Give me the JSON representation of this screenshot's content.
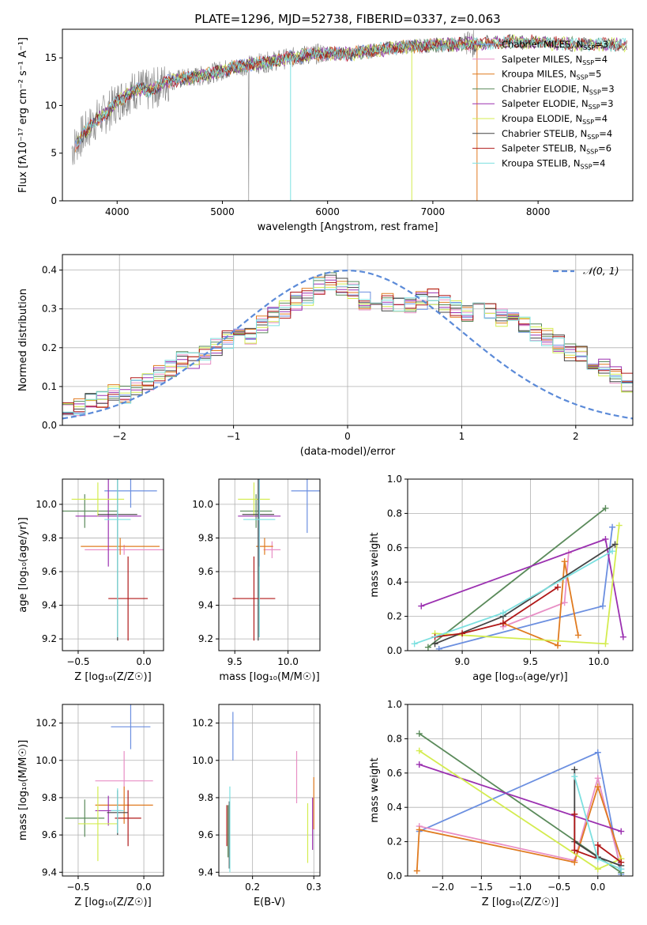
{
  "figure": {
    "title": "PLATE=1296, MJD=52738, FIBERID=0337, z=0.063"
  },
  "colors": {
    "Chabrier MILES": "#6b8fe0",
    "Salpeter MILES": "#e88fc5",
    "Kroupa MILES": "#e07b20",
    "Chabrier ELODIE": "#5a8a5a",
    "Salpeter ELODIE": "#9b30b0",
    "Kroupa ELODIE": "#d4ec50",
    "Chabrier STELIB": "#444444",
    "Salpeter STELIB": "#b01818",
    "Kroupa STELIB": "#7de0e0",
    "gaussian": "#5b8ad8",
    "data": "#7f7f7f"
  },
  "chart_data": [
    {
      "id": "spectrum",
      "type": "line",
      "xlabel": "wavelength [Angstrom, rest frame]",
      "ylabel": "Flux [fλ10⁻¹⁷ erg cm⁻² s⁻¹ A⁻¹]",
      "xlim": [
        3480,
        8900
      ],
      "ylim": [
        0,
        18
      ],
      "xticks": [
        4000,
        5000,
        6000,
        7000,
        8000
      ],
      "yticks": [
        0,
        5,
        10,
        15
      ],
      "grid": false,
      "legend_position": "right",
      "continuum_x": [
        3580,
        3640,
        3700,
        3800,
        3900,
        4000,
        4100,
        4200,
        4300,
        4500,
        4800,
        5000,
        5200,
        5400,
        5600,
        5800,
        6000,
        6200,
        6400,
        6600,
        6800,
        7000,
        7200,
        7400,
        7600,
        7800,
        8000,
        8200,
        8400
      ],
      "continuum_y": [
        5.5,
        6.5,
        7.2,
        8.5,
        9.2,
        10.4,
        11.2,
        11.8,
        11.5,
        12.6,
        13.1,
        13.7,
        14.2,
        14.5,
        14.9,
        15.3,
        15.5,
        15.4,
        15.7,
        16.0,
        16.2,
        16.3,
        16.4,
        16.5,
        16.6,
        16.7,
        16.6,
        16.5,
        16.4
      ],
      "series": [
        {
          "name": "Chabrier MILES, N_SSP=3",
          "name_main": "Chabrier MILES, N",
          "name_sub": "SSP",
          "name_tail": "=3"
        },
        {
          "name": "Salpeter MILES, N_SSP=4",
          "name_main": "Salpeter MILES, N",
          "name_sub": "SSP",
          "name_tail": "=4"
        },
        {
          "name": "Kroupa MILES, N_SSP=5",
          "name_main": "Kroupa MILES, N",
          "name_sub": "SSP",
          "name_tail": "=5"
        },
        {
          "name": "Chabrier ELODIE, N_SSP=3",
          "name_main": "Chabrier ELODIE, N",
          "name_sub": "SSP",
          "name_tail": "=3"
        },
        {
          "name": "Salpeter ELODIE, N_SSP=3",
          "name_main": "Salpeter ELODIE, N",
          "name_sub": "SSP",
          "name_tail": "=3"
        },
        {
          "name": "Kroupa ELODIE, N_SSP=4",
          "name_main": "Kroupa ELODIE, N",
          "name_sub": "SSP",
          "name_tail": "=4"
        },
        {
          "name": "Chabrier STELIB, N_SSP=4",
          "name_main": "Chabrier STELIB, N",
          "name_sub": "SSP",
          "name_tail": "=4"
        },
        {
          "name": "Salpeter STELIB, N_SSP=6",
          "name_main": "Salpeter STELIB, N",
          "name_sub": "SSP",
          "name_tail": "=6"
        },
        {
          "name": "Kroupa STELIB, N_SSP=4",
          "name_main": "Kroupa STELIB, N",
          "name_sub": "SSP",
          "name_tail": "=4"
        }
      ]
    },
    {
      "id": "residuals",
      "type": "histogram",
      "xlabel": "(data-model)/error",
      "ylabel": "Normed distribution",
      "xlim": [
        -2.5,
        2.5
      ],
      "ylim": [
        0,
        0.44
      ],
      "xticks": [
        -2,
        -1,
        0,
        1,
        2
      ],
      "xticklabels": [
        "−2",
        "−1",
        "0",
        "1",
        "2"
      ],
      "yticks": [
        0.0,
        0.1,
        0.2,
        0.3,
        0.4
      ],
      "yticklabels": [
        "0.0",
        "0.1",
        "0.2",
        "0.3",
        "0.4"
      ],
      "grid": true,
      "legend": "𝒩(0, 1)",
      "legend_position": "top-right",
      "bin_width": 0.1,
      "series_names": [
        "Chabrier MILES",
        "Salpeter MILES",
        "Kroupa MILES",
        "Chabrier ELODIE",
        "Salpeter ELODIE",
        "Kroupa ELODIE",
        "Chabrier STELIB",
        "Salpeter STELIB",
        "Kroupa STELIB"
      ],
      "base": [
        0.04,
        0.05,
        0.06,
        0.07,
        0.08,
        0.08,
        0.1,
        0.11,
        0.13,
        0.15,
        0.17,
        0.17,
        0.18,
        0.2,
        0.22,
        0.23,
        0.23,
        0.26,
        0.28,
        0.3,
        0.32,
        0.33,
        0.36,
        0.37,
        0.36,
        0.35,
        0.32,
        0.33,
        0.32,
        0.31,
        0.31,
        0.32,
        0.33,
        0.31,
        0.3,
        0.29,
        0.31,
        0.3,
        0.28,
        0.27,
        0.26,
        0.24,
        0.23,
        0.21,
        0.19,
        0.18,
        0.16,
        0.15,
        0.13,
        0.11,
        0.1,
        0.1,
        0.09,
        0.08,
        0.07,
        0.07,
        0.06,
        0.05,
        0.05,
        0.04
      ]
    },
    {
      "id": "age_vs_Z",
      "type": "errorbar",
      "xlabel": "Z [log₁₀(Z/Z☉)]",
      "ylabel": "age  [log₁₀(age/yr)]",
      "xlim": [
        -0.62,
        0.15
      ],
      "ylim": [
        9.13,
        10.15
      ],
      "xticks": [
        -0.5,
        0.0
      ],
      "xticklabels": [
        "−0.5",
        "0.0"
      ],
      "yticks": [
        9.2,
        9.4,
        9.6,
        9.8,
        10.0
      ],
      "yticklabels": [
        "9.2",
        "9.4",
        "9.6",
        "9.8",
        "10.0"
      ],
      "grid": true,
      "points": [
        {
          "series": "Chabrier MILES",
          "x": -0.1,
          "xerr": 0.2,
          "y": 10.08,
          "yerr": 0.1
        },
        {
          "series": "Salpeter MILES",
          "x": -0.15,
          "xerr": 0.3,
          "y": 9.73,
          "yerr": 0.03
        },
        {
          "series": "Kroupa MILES",
          "x": -0.18,
          "xerr": 0.3,
          "y": 9.75,
          "yerr": 0.05
        },
        {
          "series": "Chabrier ELODIE",
          "x": -0.45,
          "xerr": 0.25,
          "y": 9.96,
          "yerr": 0.1
        },
        {
          "series": "Salpeter ELODIE",
          "x": -0.27,
          "xerr": 0.25,
          "y": 9.93,
          "yerr": 0.3
        },
        {
          "series": "Kroupa ELODIE",
          "x": -0.35,
          "xerr": 0.2,
          "y": 10.03,
          "yerr": 0.1
        },
        {
          "series": "Chabrier STELIB",
          "x": -0.2,
          "xerr": 0.15,
          "y": 9.94,
          "yerr": 0.75
        },
        {
          "series": "Salpeter STELIB",
          "x": -0.12,
          "xerr": 0.15,
          "y": 9.44,
          "yerr": 0.25
        },
        {
          "series": "Kroupa STELIB",
          "x": -0.2,
          "xerr": 0.1,
          "y": 9.91,
          "yerr": 0.7
        }
      ]
    },
    {
      "id": "age_vs_mass",
      "type": "errorbar",
      "xlabel": "mass [log₁₀(M/M☉)]",
      "ylabel": "",
      "xlim": [
        9.35,
        10.3
      ],
      "ylim": [
        9.13,
        10.15
      ],
      "xticks": [
        9.5,
        10.0
      ],
      "xticklabels": [
        "9.5",
        "10.0"
      ],
      "yticks": [
        9.2,
        9.4,
        9.6,
        9.8,
        10.0
      ],
      "yticklabels": [
        "9.2",
        "9.4",
        "9.6",
        "9.8",
        "10.0"
      ],
      "grid": true,
      "points": [
        {
          "series": "Chabrier MILES",
          "x": 10.18,
          "xerr": 0.15,
          "y": 10.08,
          "yerr": 0.25
        },
        {
          "series": "Salpeter MILES",
          "x": 9.85,
          "xerr": 0.08,
          "y": 9.73,
          "yerr": 0.05
        },
        {
          "series": "Kroupa MILES",
          "x": 9.78,
          "xerr": 0.08,
          "y": 9.75,
          "yerr": 0.05
        },
        {
          "series": "Chabrier ELODIE",
          "x": 9.7,
          "xerr": 0.15,
          "y": 9.96,
          "yerr": 0.1
        },
        {
          "series": "Salpeter ELODIE",
          "x": 9.73,
          "xerr": 0.2,
          "y": 9.93,
          "yerr": 0.3
        },
        {
          "series": "Kroupa ELODIE",
          "x": 9.68,
          "xerr": 0.15,
          "y": 10.03,
          "yerr": 0.1
        },
        {
          "series": "Chabrier STELIB",
          "x": 9.72,
          "xerr": 0.15,
          "y": 9.94,
          "yerr": 0.75
        },
        {
          "series": "Salpeter STELIB",
          "x": 9.68,
          "xerr": 0.2,
          "y": 9.44,
          "yerr": 0.25
        },
        {
          "series": "Kroupa STELIB",
          "x": 9.73,
          "xerr": 0.15,
          "y": 9.91,
          "yerr": 0.7
        }
      ]
    },
    {
      "id": "mass_vs_Z",
      "type": "errorbar",
      "xlabel": "Z [log₁₀(Z/Z☉)]",
      "ylabel": "mass [log₁₀(M/M☉)]",
      "xlim": [
        -0.62,
        0.15
      ],
      "ylim": [
        9.38,
        10.3
      ],
      "xticks": [
        -0.5,
        0.0
      ],
      "xticklabels": [
        "−0.5",
        "0.0"
      ],
      "yticks": [
        9.4,
        9.6,
        9.8,
        10.0,
        10.2
      ],
      "yticklabels": [
        "9.4",
        "9.6",
        "9.8",
        "10.0",
        "10.2"
      ],
      "grid": true,
      "points": [
        {
          "series": "Chabrier MILES",
          "x": -0.1,
          "xerr": 0.15,
          "y": 10.18,
          "yerr": 0.12
        },
        {
          "series": "Salpeter MILES",
          "x": -0.15,
          "xerr": 0.22,
          "y": 9.89,
          "yerr": 0.16
        },
        {
          "series": "Kroupa MILES",
          "x": -0.15,
          "xerr": 0.22,
          "y": 9.76,
          "yerr": 0.1
        },
        {
          "series": "Chabrier ELODIE",
          "x": -0.45,
          "xerr": 0.15,
          "y": 9.69,
          "yerr": 0.1
        },
        {
          "series": "Salpeter ELODIE",
          "x": -0.27,
          "xerr": 0.1,
          "y": 9.73,
          "yerr": 0.08
        },
        {
          "series": "Kroupa ELODIE",
          "x": -0.35,
          "xerr": 0.15,
          "y": 9.66,
          "yerr": 0.2
        },
        {
          "series": "Chabrier STELIB",
          "x": -0.2,
          "xerr": 0.08,
          "y": 9.72,
          "yerr": 0.12
        },
        {
          "series": "Salpeter STELIB",
          "x": -0.12,
          "xerr": 0.1,
          "y": 9.69,
          "yerr": 0.15
        },
        {
          "series": "Kroupa STELIB",
          "x": -0.2,
          "xerr": 0.05,
          "y": 9.73,
          "yerr": 0.12
        }
      ]
    },
    {
      "id": "mass_vs_ebv",
      "type": "errorbar",
      "xlabel": "E(B-V)",
      "ylabel": "",
      "xlim": [
        0.145,
        0.31
      ],
      "ylim": [
        9.38,
        10.3
      ],
      "xticks": [
        0.2,
        0.3
      ],
      "xticklabels": [
        "0.2",
        "0.3"
      ],
      "yticks": [
        9.4,
        9.6,
        9.8,
        10.0,
        10.2
      ],
      "yticklabels": [
        "9.4",
        "9.6",
        "9.8",
        "10.0",
        "10.2"
      ],
      "grid": true,
      "points": [
        {
          "series": "Chabrier MILES",
          "x": 0.168,
          "xerr": 0,
          "y": 10.13,
          "yerr": 0.13
        },
        {
          "series": "Salpeter MILES",
          "x": 0.272,
          "xerr": 0,
          "y": 9.91,
          "yerr": 0.14
        },
        {
          "series": "Kroupa MILES",
          "x": 0.3,
          "xerr": 0,
          "y": 9.77,
          "yerr": 0.14
        },
        {
          "series": "Chabrier ELODIE",
          "x": 0.16,
          "xerr": 0,
          "y": 9.62,
          "yerr": 0.14
        },
        {
          "series": "Salpeter ELODIE",
          "x": 0.298,
          "xerr": 0,
          "y": 9.66,
          "yerr": 0.14
        },
        {
          "series": "Kroupa ELODIE",
          "x": 0.29,
          "xerr": 0,
          "y": 9.61,
          "yerr": 0.16
        },
        {
          "series": "Chabrier STELIB",
          "x": 0.162,
          "xerr": 0,
          "y": 9.6,
          "yerr": 0.18
        },
        {
          "series": "Salpeter STELIB",
          "x": 0.158,
          "xerr": 0,
          "y": 9.65,
          "yerr": 0.11
        },
        {
          "series": "Kroupa STELIB",
          "x": 0.163,
          "xerr": 0,
          "y": 9.63,
          "yerr": 0.23
        }
      ]
    },
    {
      "id": "weight_vs_age",
      "type": "line",
      "xlabel": "age  [log₁₀(age/yr)]",
      "ylabel": "mass weight",
      "xlim": [
        8.6,
        10.25
      ],
      "ylim": [
        0,
        1
      ],
      "xticks": [
        9.0,
        9.5,
        10.0
      ],
      "xticklabels": [
        "9.0",
        "9.5",
        "10.0"
      ],
      "yticks": [
        0.0,
        0.2,
        0.4,
        0.6,
        0.8,
        1.0
      ],
      "yticklabels": [
        "0.0",
        "0.2",
        "0.4",
        "0.6",
        "0.8",
        "1.0"
      ],
      "grid": true,
      "series": [
        {
          "name": "Chabrier MILES",
          "x": [
            8.83,
            10.03,
            10.1
          ],
          "y": [
            0.01,
            0.26,
            0.72
          ]
        },
        {
          "name": "Salpeter MILES",
          "x": [
            9.3,
            9.75,
            9.78
          ],
          "y": [
            0.14,
            0.28,
            0.57
          ]
        },
        {
          "name": "Kroupa MILES",
          "x": [
            9.3,
            9.7,
            9.75,
            9.85
          ],
          "y": [
            0.16,
            0.03,
            0.52,
            0.09
          ]
        },
        {
          "name": "Chabrier ELODIE",
          "x": [
            8.75,
            10.05
          ],
          "y": [
            0.02,
            0.83
          ]
        },
        {
          "name": "Salpeter ELODIE",
          "x": [
            8.7,
            10.05,
            10.18
          ],
          "y": [
            0.26,
            0.65,
            0.08
          ]
        },
        {
          "name": "Kroupa ELODIE",
          "x": [
            8.8,
            10.05,
            10.15
          ],
          "y": [
            0.1,
            0.04,
            0.73
          ]
        },
        {
          "name": "Chabrier STELIB",
          "x": [
            8.8,
            9.3,
            10.12
          ],
          "y": [
            0.04,
            0.2,
            0.62
          ]
        },
        {
          "name": "Salpeter STELIB",
          "x": [
            8.8,
            9.0,
            9.3,
            9.7
          ],
          "y": [
            0.08,
            0.1,
            0.16,
            0.37
          ]
        },
        {
          "name": "Kroupa STELIB",
          "x": [
            8.65,
            9.3,
            10.1
          ],
          "y": [
            0.04,
            0.22,
            0.58
          ]
        }
      ]
    },
    {
      "id": "weight_vs_Z",
      "type": "line",
      "xlabel": "Z [log₁₀(Z/Z☉)]",
      "ylabel": "mass weight",
      "xlim": [
        -2.45,
        0.45
      ],
      "ylim": [
        0,
        1
      ],
      "xticks": [
        -2.0,
        -1.5,
        -1.0,
        -0.5,
        0.0
      ],
      "xticklabels": [
        "−2.0",
        "−1.5",
        "−1.0",
        "−0.5",
        "0.0"
      ],
      "yticks": [
        0.0,
        0.2,
        0.4,
        0.6,
        0.8,
        1.0
      ],
      "yticklabels": [
        "0.0",
        "0.2",
        "0.4",
        "0.6",
        "0.8",
        "1.0"
      ],
      "grid": true,
      "series": [
        {
          "name": "Chabrier MILES",
          "x": [
            -2.3,
            0.0,
            0.3
          ],
          "y": [
            0.26,
            0.72,
            0.01
          ]
        },
        {
          "name": "Salpeter MILES",
          "x": [
            -2.3,
            -0.3,
            0.0,
            0.3
          ],
          "y": [
            0.29,
            0.09,
            0.57,
            0.04
          ]
        },
        {
          "name": "Kroupa MILES",
          "x": [
            -2.33,
            -2.3,
            -0.3,
            0.0,
            0.3
          ],
          "y": [
            0.03,
            0.27,
            0.08,
            0.52,
            0.1
          ]
        },
        {
          "name": "Chabrier ELODIE",
          "x": [
            -2.3,
            0.3
          ],
          "y": [
            0.83,
            0.02
          ]
        },
        {
          "name": "Salpeter ELODIE",
          "x": [
            -2.3,
            0.3
          ],
          "y": [
            0.65,
            0.26
          ]
        },
        {
          "name": "Kroupa ELODIE",
          "x": [
            -2.3,
            0.0,
            0.3
          ],
          "y": [
            0.73,
            0.04,
            0.1
          ]
        },
        {
          "name": "Chabrier STELIB",
          "x": [
            -0.3,
            -0.3,
            0.0,
            0.3
          ],
          "y": [
            0.62,
            0.2,
            0.11,
            0.06
          ]
        },
        {
          "name": "Salpeter STELIB",
          "x": [
            -0.3,
            -0.3,
            0.0,
            0.0,
            0.3
          ],
          "y": [
            0.36,
            0.15,
            0.1,
            0.18,
            0.08
          ]
        },
        {
          "name": "Kroupa STELIB",
          "x": [
            -0.3,
            0.0,
            0.3
          ],
          "y": [
            0.58,
            0.1,
            0.04
          ]
        }
      ]
    }
  ]
}
